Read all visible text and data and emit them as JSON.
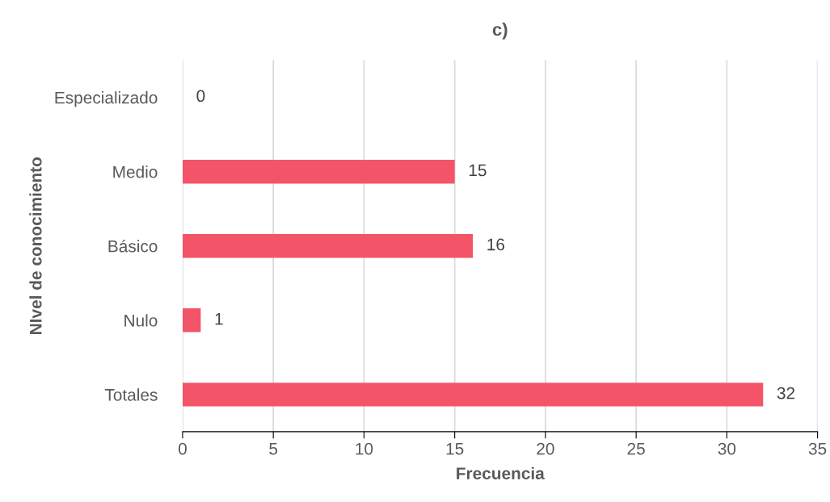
{
  "chart_data": {
    "type": "bar",
    "orientation": "horizontal",
    "title": "c)",
    "xlabel": "Frecuencia",
    "ylabel": "NIvel de conocimiento",
    "categories": [
      "Especializado",
      "Medio",
      "Básico",
      "Nulo",
      "Totales"
    ],
    "values": [
      0,
      15,
      16,
      1,
      32
    ],
    "color": "#f45468",
    "xlim": [
      0,
      35
    ],
    "xticks": [
      0,
      5,
      10,
      15,
      20,
      25,
      30,
      35
    ],
    "grid": "x",
    "data_labels": true
  }
}
